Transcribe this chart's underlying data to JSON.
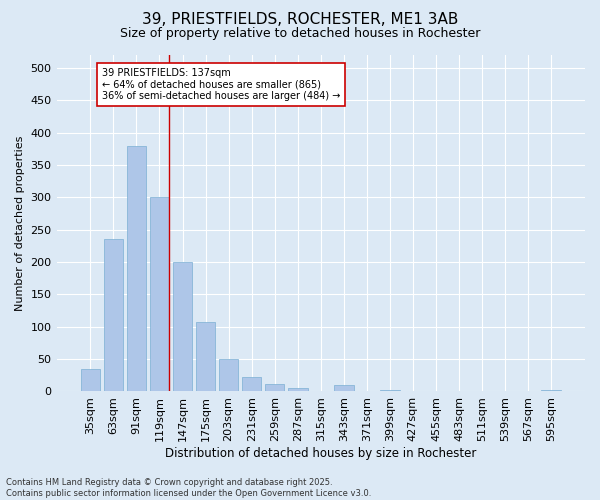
{
  "title": "39, PRIESTFIELDS, ROCHESTER, ME1 3AB",
  "subtitle": "Size of property relative to detached houses in Rochester",
  "xlabel": "Distribution of detached houses by size in Rochester",
  "ylabel": "Number of detached properties",
  "categories": [
    "35sqm",
    "63sqm",
    "91sqm",
    "119sqm",
    "147sqm",
    "175sqm",
    "203sqm",
    "231sqm",
    "259sqm",
    "287sqm",
    "315sqm",
    "343sqm",
    "371sqm",
    "399sqm",
    "427sqm",
    "455sqm",
    "483sqm",
    "511sqm",
    "539sqm",
    "567sqm",
    "595sqm"
  ],
  "values": [
    35,
    235,
    380,
    300,
    200,
    107,
    50,
    22,
    12,
    5,
    0,
    10,
    0,
    3,
    0,
    0,
    0,
    0,
    0,
    0,
    3
  ],
  "bar_color": "#aec6e8",
  "bar_edge_color": "#7bafd4",
  "vline_color": "#cc0000",
  "vline_x_index": 3,
  "annotation_text": "39 PRIESTFIELDS: 137sqm\n← 64% of detached houses are smaller (865)\n36% of semi-detached houses are larger (484) →",
  "annotation_box_color": "#ffffff",
  "annotation_box_edge": "#cc0000",
  "bg_color": "#dce9f5",
  "plot_bg_color": "#dce9f5",
  "footer": "Contains HM Land Registry data © Crown copyright and database right 2025.\nContains public sector information licensed under the Open Government Licence v3.0.",
  "ylim": [
    0,
    520
  ],
  "yticks": [
    0,
    50,
    100,
    150,
    200,
    250,
    300,
    350,
    400,
    450,
    500
  ],
  "title_fontsize": 11,
  "subtitle_fontsize": 9,
  "xlabel_fontsize": 8.5,
  "ylabel_fontsize": 8,
  "tick_fontsize": 8,
  "footer_fontsize": 6
}
